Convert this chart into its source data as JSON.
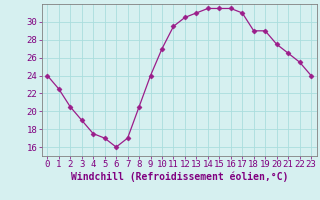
{
  "x": [
    0,
    1,
    2,
    3,
    4,
    5,
    6,
    7,
    8,
    9,
    10,
    11,
    12,
    13,
    14,
    15,
    16,
    17,
    18,
    19,
    20,
    21,
    22,
    23
  ],
  "y": [
    24,
    22.5,
    20.5,
    19,
    17.5,
    17,
    16,
    17,
    20.5,
    24,
    27,
    29.5,
    30.5,
    31,
    31.5,
    31.5,
    31.5,
    31,
    29,
    29,
    27.5,
    26.5,
    25.5,
    24
  ],
  "line_color": "#9b1d8a",
  "marker": "D",
  "marker_size": 2.5,
  "bg_color": "#d6f0f0",
  "grid_color": "#aadddd",
  "xlabel": "Windchill (Refroidissement éolien,°C)",
  "ylim": [
    15,
    32
  ],
  "xlim": [
    -0.5,
    23.5
  ],
  "yticks": [
    16,
    18,
    20,
    22,
    24,
    26,
    28,
    30
  ],
  "xticks": [
    0,
    1,
    2,
    3,
    4,
    5,
    6,
    7,
    8,
    9,
    10,
    11,
    12,
    13,
    14,
    15,
    16,
    17,
    18,
    19,
    20,
    21,
    22,
    23
  ],
  "tick_color": "#800080",
  "axis_color": "#808080",
  "label_fontsize": 7,
  "tick_fontsize": 6.5
}
